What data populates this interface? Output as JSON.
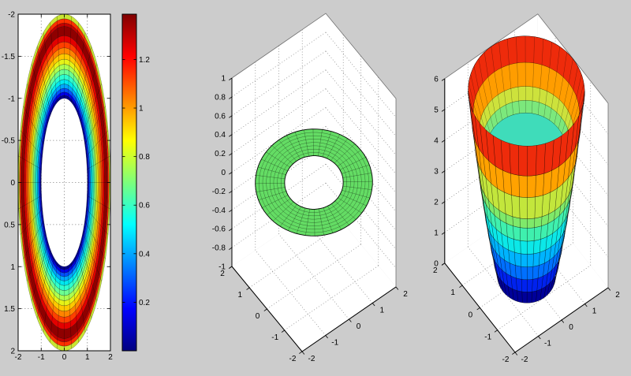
{
  "figure": {
    "bg_color": "#cccccc",
    "axes_bg_color": "#ffffff",
    "axis_color": "#000000",
    "grid_color": "#909090"
  },
  "chart_data": [
    {
      "type": "heatmap",
      "subtype": "polar-pcolor-annulus",
      "title": "",
      "xlabel": "",
      "ylabel": "",
      "x_range": [
        -2,
        2
      ],
      "y_range": [
        -2,
        2
      ],
      "y_axis_reversed": true,
      "x_tick_labels": [
        "-2",
        "-1",
        "0",
        "1",
        "2"
      ],
      "x_tick_values": [
        -2,
        -1,
        0,
        1,
        2
      ],
      "y_tick_labels": [
        "-2",
        "-1.5",
        "-1",
        "-0.5",
        "0",
        "0.5",
        "1",
        "1.5",
        "2"
      ],
      "y_tick_values": [
        -2,
        -1.5,
        -1,
        -0.5,
        0,
        0.5,
        1,
        1.5,
        2
      ],
      "grid": true,
      "annulus_inner_radius": 1,
      "annulus_outer_radius": 2,
      "n_spokes": 40,
      "radial_bands": [
        {
          "r0": 1.0,
          "r1": 1.035,
          "value": 0.03,
          "color": "#00008c"
        },
        {
          "r0": 1.035,
          "r1": 1.075,
          "value": 0.12,
          "color": "#0000e6"
        },
        {
          "r0": 1.075,
          "r1": 1.12,
          "value": 0.25,
          "color": "#0050ff"
        },
        {
          "r0": 1.12,
          "r1": 1.17,
          "value": 0.37,
          "color": "#00a8ff"
        },
        {
          "r0": 1.17,
          "r1": 1.225,
          "value": 0.48,
          "color": "#00e8f0"
        },
        {
          "r0": 1.225,
          "r1": 1.285,
          "value": 0.58,
          "color": "#2dffcf"
        },
        {
          "r0": 1.285,
          "r1": 1.345,
          "value": 0.67,
          "color": "#6cff92"
        },
        {
          "r0": 1.345,
          "r1": 1.405,
          "value": 0.76,
          "color": "#adff50"
        },
        {
          "r0": 1.405,
          "r1": 1.465,
          "value": 0.85,
          "color": "#e6f317"
        },
        {
          "r0": 1.465,
          "r1": 1.53,
          "value": 0.94,
          "color": "#ffc800"
        },
        {
          "r0": 1.53,
          "r1": 1.6,
          "value": 1.03,
          "color": "#ff8400"
        },
        {
          "r0": 1.6,
          "r1": 1.67,
          "value": 1.12,
          "color": "#ff3f00"
        },
        {
          "r0": 1.67,
          "r1": 1.745,
          "value": 1.21,
          "color": "#e30000"
        },
        {
          "r0": 1.745,
          "r1": 1.855,
          "value": 1.33,
          "color": "#8f0000"
        },
        {
          "r0": 1.855,
          "r1": 1.895,
          "value": 1.25,
          "color": "#c40000"
        },
        {
          "r0": 1.895,
          "r1": 1.945,
          "value": 1.1,
          "color": "#ff3000"
        },
        {
          "r0": 1.945,
          "r1": 2.0,
          "value": 0.78,
          "color": "#c8e632"
        }
      ],
      "colorbar": {
        "range": [
          0,
          1.3866
        ],
        "tick_labels": [
          "0.2",
          "0.4",
          "0.6",
          "0.8",
          "1",
          "1.2"
        ],
        "tick_values": [
          0.2,
          0.4,
          0.6,
          0.8,
          1,
          1.2
        ],
        "colormap": "jet",
        "gradient_stops": [
          {
            "t": 0.0,
            "color": "#000080"
          },
          {
            "t": 0.125,
            "color": "#0000ff"
          },
          {
            "t": 0.375,
            "color": "#00ffff"
          },
          {
            "t": 0.5,
            "color": "#7cff7c"
          },
          {
            "t": 0.625,
            "color": "#ffff00"
          },
          {
            "t": 0.875,
            "color": "#ff0000"
          },
          {
            "t": 1.0,
            "color": "#800000"
          }
        ]
      }
    },
    {
      "type": "heatmap",
      "subtype": "mesh3d-flat-annulus",
      "x_range": [
        -2,
        2
      ],
      "y_range": [
        -2,
        2
      ],
      "z_range": [
        -1,
        1
      ],
      "x_tick_labels": [
        "2",
        "1",
        "0",
        "-1",
        "-2"
      ],
      "x_tick_values": [
        2,
        1,
        0,
        -1,
        -2
      ],
      "y_tick_labels": [
        "-2",
        "-1",
        "0",
        "1",
        "2"
      ],
      "y_tick_values": [
        -2,
        -1,
        0,
        1,
        2
      ],
      "z_tick_labels": [
        "1",
        "0.8",
        "0.6",
        "0.4",
        "0.2",
        "0",
        "-0.2",
        "-0.4",
        "-0.6",
        "-0.8",
        "-1"
      ],
      "z_tick_values": [
        1,
        0.8,
        0.6,
        0.4,
        0.2,
        0,
        -0.2,
        -0.4,
        -0.6,
        -0.8,
        -1
      ],
      "grid": true,
      "surface": {
        "kind": "flat annulus at z=0",
        "inner_radius": 1,
        "outer_radius": 2,
        "z": 0,
        "face_color": "#64dc64",
        "edge_color": "#000000",
        "n_spokes": 40,
        "n_rings": 8
      }
    },
    {
      "type": "heatmap",
      "subtype": "surf3d-revolution-cup",
      "x_range": [
        -2,
        2
      ],
      "y_range": [
        -2,
        2
      ],
      "z_range": [
        0,
        6
      ],
      "x_tick_labels": [
        "2",
        "1",
        "0",
        "-1",
        "-2"
      ],
      "x_tick_values": [
        2,
        1,
        0,
        -1,
        -2
      ],
      "y_tick_labels": [
        "-2",
        "-1",
        "0",
        "1",
        "2"
      ],
      "y_tick_values": [
        -2,
        -1,
        0,
        1,
        2
      ],
      "z_tick_labels": [
        "0",
        "1",
        "2",
        "3",
        "4",
        "5",
        "6"
      ],
      "z_tick_values": [
        0,
        1,
        2,
        3,
        4,
        5,
        6
      ],
      "grid": true,
      "surface": {
        "kind": "surface of revolution z = 2*(x^2+y^2-1), radius R(z)=sqrt(1+z/2), 1<=r<=2",
        "colormap": "jet",
        "caxis": [
          0,
          6
        ],
        "z_bands": [
          {
            "z0": 0.0,
            "z1": 0.45,
            "color": "#000099"
          },
          {
            "z0": 0.45,
            "z1": 0.95,
            "color": "#0022ee"
          },
          {
            "z0": 0.95,
            "z1": 1.45,
            "color": "#0070ff"
          },
          {
            "z0": 1.45,
            "z1": 1.95,
            "color": "#00b4ff"
          },
          {
            "z0": 1.95,
            "z1": 2.45,
            "color": "#0ce8e8"
          },
          {
            "z0": 2.45,
            "z1": 2.95,
            "color": "#3ff0ae"
          },
          {
            "z0": 2.95,
            "z1": 3.3,
            "color": "#7fe96a"
          },
          {
            "z0": 3.3,
            "z1": 4.1,
            "color": "#c3e63c"
          },
          {
            "z0": 4.1,
            "z1": 4.9,
            "color": "#ffa200"
          },
          {
            "z0": 4.9,
            "z1": 6.0,
            "color": "#ee2b0b"
          }
        ],
        "rim": {
          "radius": 2,
          "z": 6,
          "color": "#ee2b0b"
        },
        "interior_rings": [
          {
            "radius": 1.82,
            "z": 5.3,
            "color": "#ff9d00"
          },
          {
            "radius": 1.62,
            "z": 4.7,
            "color": "#cde23c"
          },
          {
            "radius": 1.5,
            "z": 4.35,
            "color": "#7ce87c"
          },
          {
            "radius": 1.38,
            "z": 4.05,
            "color": "#3fdcba"
          }
        ],
        "n_spokes": 40
      }
    }
  ]
}
